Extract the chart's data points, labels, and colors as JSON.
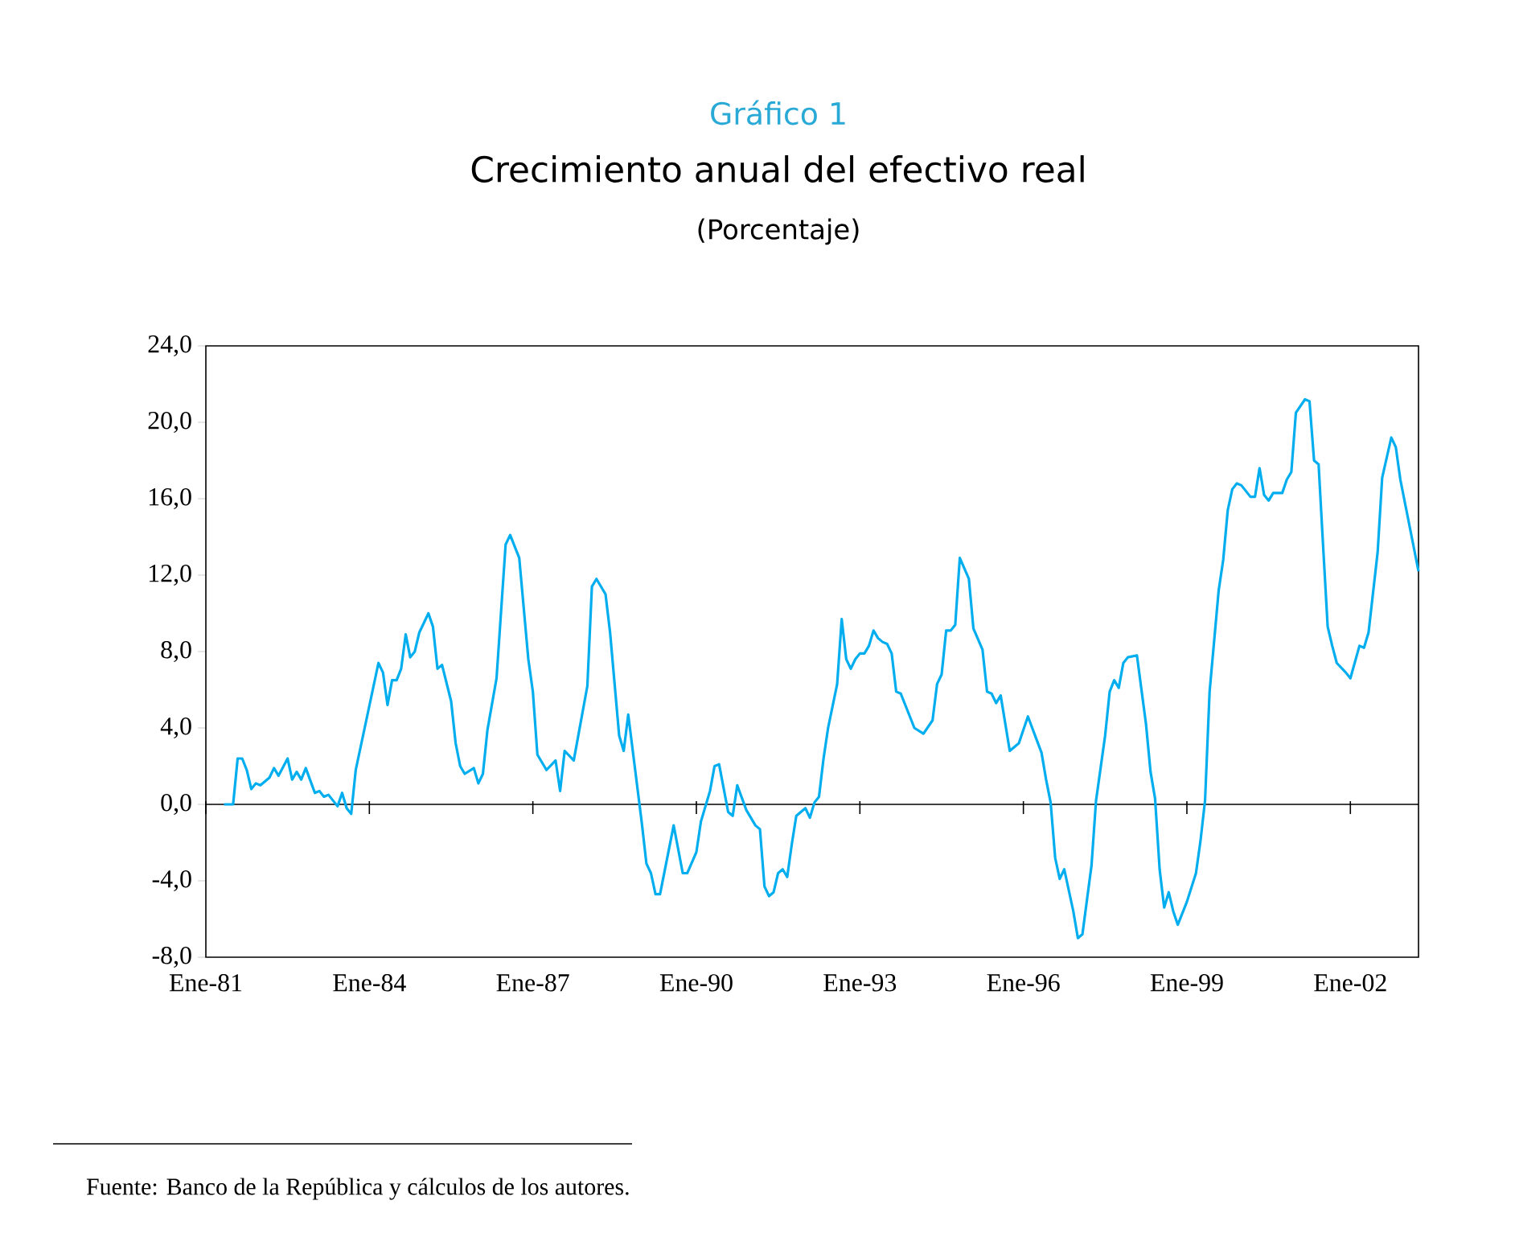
{
  "chart_data": {
    "type": "line",
    "title": "Crecimiento anual del efectivo real",
    "subtitle": "(Porcentaje)",
    "annotations": [
      "Gráfico 1",
      "Fuente: Banco de la República y cálculos de los autores."
    ],
    "x": [
      "1981-05",
      "1981-07",
      "1981-08",
      "1981-09",
      "1981-10",
      "1981-11",
      "1981-12",
      "1982-01",
      "1982-03",
      "1982-04",
      "1982-05",
      "1982-07",
      "1982-08",
      "1982-09",
      "1982-10",
      "1982-11",
      "1983-01",
      "1983-02",
      "1983-03",
      "1983-04",
      "1983-06",
      "1983-07",
      "1983-08",
      "1983-09",
      "1983-10",
      "1984-03",
      "1984-04",
      "1984-05",
      "1984-06",
      "1984-07",
      "1984-08",
      "1984-09",
      "1984-10",
      "1984-11",
      "1984-12",
      "1985-02",
      "1985-03",
      "1985-04",
      "1985-05",
      "1985-07",
      "1985-08",
      "1985-09",
      "1985-10",
      "1985-12",
      "1986-01",
      "1986-02",
      "1986-03",
      "1986-05",
      "1986-07",
      "1986-08",
      "1986-10",
      "1986-12",
      "1987-01",
      "1987-02",
      "1987-04",
      "1987-06",
      "1987-07",
      "1987-08",
      "1987-10",
      "1988-01",
      "1988-02",
      "1988-03",
      "1988-05",
      "1988-06",
      "1988-08",
      "1988-09",
      "1988-10",
      "1989-01",
      "1989-02",
      "1989-03",
      "1989-04",
      "1989-05",
      "1989-08",
      "1989-10",
      "1989-11",
      "1990-01",
      "1990-02",
      "1990-04",
      "1990-05",
      "1990-06",
      "1990-08",
      "1990-09",
      "1990-10",
      "1990-12",
      "1991-01",
      "1991-02",
      "1991-03",
      "1991-04",
      "1991-05",
      "1991-06",
      "1991-07",
      "1991-08",
      "1991-09",
      "1991-10",
      "1991-11",
      "1992-01",
      "1992-02",
      "1992-03",
      "1992-04",
      "1992-05",
      "1992-06",
      "1992-08",
      "1992-09",
      "1992-10",
      "1992-11",
      "1992-12",
      "1993-01",
      "1993-02",
      "1993-03",
      "1993-04",
      "1993-05",
      "1993-06",
      "1993-07",
      "1993-08",
      "1993-09",
      "1993-10",
      "1994-01",
      "1994-03",
      "1994-05",
      "1994-06",
      "1994-07",
      "1994-08",
      "1994-09",
      "1994-10",
      "1994-11",
      "1995-01",
      "1995-02",
      "1995-04",
      "1995-05",
      "1995-06",
      "1995-07",
      "1995-08",
      "1995-10",
      "1995-12",
      "1996-02",
      "1996-05",
      "1996-06",
      "1996-07",
      "1996-08",
      "1996-09",
      "1996-10",
      "1996-12",
      "1997-01",
      "1997-02",
      "1997-04",
      "1997-05",
      "1997-07",
      "1997-08",
      "1997-09",
      "1997-10",
      "1997-11",
      "1997-12",
      "1998-02",
      "1998-03",
      "1998-04",
      "1998-05",
      "1998-06",
      "1998-07",
      "1998-08",
      "1998-09",
      "1998-10",
      "1998-11",
      "1999-01",
      "1999-03",
      "1999-04",
      "1999-05",
      "1999-06",
      "1999-08",
      "1999-09",
      "1999-10",
      "1999-11",
      "1999-12",
      "2000-01",
      "2000-03",
      "2000-04",
      "2000-05",
      "2000-06",
      "2000-07",
      "2000-08",
      "2000-10",
      "2000-11",
      "2000-12",
      "2001-01",
      "2001-03",
      "2001-04",
      "2001-05",
      "2001-06",
      "2001-07",
      "2001-08",
      "2001-09",
      "2001-10",
      "2001-12",
      "2002-01",
      "2002-03",
      "2002-04",
      "2002-05",
      "2002-07",
      "2002-08",
      "2002-10",
      "2002-11",
      "2002-12",
      "2003-04"
    ],
    "series": [
      {
        "color": "#00aeef",
        "values": [
          0.0,
          0.0,
          2.4,
          2.4,
          1.8,
          0.8,
          1.1,
          1.0,
          1.4,
          1.9,
          1.5,
          2.4,
          1.3,
          1.7,
          1.3,
          1.9,
          0.6,
          0.7,
          0.4,
          0.5,
          -0.1,
          0.6,
          -0.2,
          -0.5,
          1.8,
          7.4,
          6.9,
          5.2,
          6.5,
          6.5,
          7.1,
          8.9,
          7.7,
          8.0,
          9.0,
          10.0,
          9.3,
          7.1,
          7.3,
          5.4,
          3.2,
          2.0,
          1.6,
          1.9,
          1.1,
          1.6,
          3.9,
          6.6,
          13.6,
          14.1,
          12.9,
          7.6,
          5.9,
          2.6,
          1.8,
          2.3,
          0.7,
          2.8,
          2.3,
          6.2,
          11.4,
          11.8,
          11.0,
          9.0,
          3.6,
          2.8,
          4.7,
          -1.0,
          -3.1,
          -3.6,
          -4.7,
          -4.7,
          -1.1,
          -3.6,
          -3.6,
          -2.5,
          -0.9,
          0.7,
          2.0,
          2.1,
          -0.4,
          -0.6,
          1.0,
          -0.3,
          -0.7,
          -1.1,
          -1.3,
          -4.3,
          -4.8,
          -4.6,
          -3.6,
          -3.4,
          -3.8,
          -2.1,
          -0.6,
          -0.2,
          -0.7,
          0.1,
          0.4,
          2.4,
          4.0,
          6.3,
          9.7,
          7.6,
          7.1,
          7.6,
          7.9,
          7.9,
          8.3,
          9.1,
          8.7,
          8.5,
          8.4,
          7.9,
          5.9,
          5.8,
          4.0,
          3.7,
          4.4,
          6.3,
          6.8,
          9.1,
          9.1,
          9.4,
          12.9,
          11.8,
          9.2,
          8.1,
          5.9,
          5.8,
          5.3,
          5.7,
          2.8,
          3.2,
          4.6,
          2.7,
          1.3,
          0.1,
          -2.8,
          -3.9,
          -3.4,
          -5.6,
          -7.0,
          -6.8,
          -3.2,
          0.2,
          3.6,
          5.9,
          6.5,
          6.1,
          7.4,
          7.7,
          7.8,
          6.0,
          4.2,
          1.7,
          0.3,
          -3.4,
          -5.4,
          -4.6,
          -5.6,
          -6.3,
          -5.1,
          -3.6,
          -1.9,
          0.2,
          5.9,
          11.2,
          12.8,
          15.4,
          16.5,
          16.8,
          16.7,
          16.1,
          16.1,
          17.6,
          16.2,
          15.9,
          16.3,
          16.3,
          17.0,
          17.4,
          20.5,
          21.2,
          21.1,
          18.0,
          17.8,
          13.5,
          9.3,
          8.3,
          7.4,
          6.9,
          6.6,
          8.3,
          8.2,
          9.0,
          13.2,
          17.1,
          19.2,
          18.7,
          17.0,
          12.2
        ]
      }
    ],
    "xlim": [
      "1981-01",
      "2003-04"
    ],
    "xticks": [
      {
        "value": "1981-01",
        "label": "Ene-81"
      },
      {
        "value": "1984-01",
        "label": "Ene-84"
      },
      {
        "value": "1987-01",
        "label": "Ene-87"
      },
      {
        "value": "1990-01",
        "label": "Ene-90"
      },
      {
        "value": "1993-01",
        "label": "Ene-93"
      },
      {
        "value": "1996-01",
        "label": "Ene-96"
      },
      {
        "value": "1999-01",
        "label": "Ene-99"
      },
      {
        "value": "2002-01",
        "label": "Ene-02"
      }
    ],
    "ylim": [
      -8,
      24
    ],
    "yticks": [
      {
        "value": -8,
        "label": "-8,0"
      },
      {
        "value": -4,
        "label": "-4,0"
      },
      {
        "value": 0,
        "label": "0,0"
      },
      {
        "value": 4,
        "label": "4,0"
      },
      {
        "value": 8,
        "label": "8,0"
      },
      {
        "value": 12,
        "label": "12,0"
      },
      {
        "value": 16,
        "label": "16,0"
      },
      {
        "value": 20,
        "label": "20,0"
      },
      {
        "value": 24,
        "label": "24,0"
      }
    ]
  }
}
